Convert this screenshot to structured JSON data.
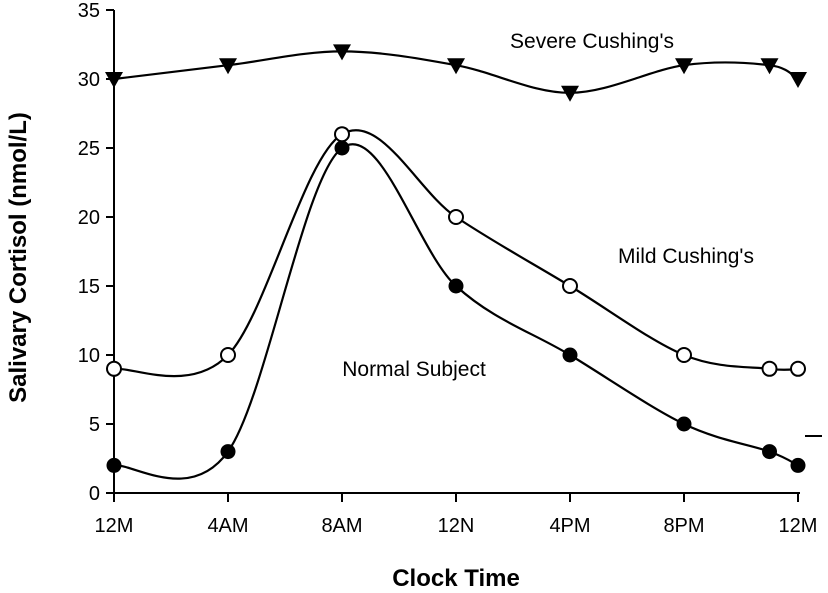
{
  "chart_data": {
    "type": "line",
    "title": "",
    "xlabel": "Clock Time",
    "ylabel": "Salivary Cortisol (nmol/L)",
    "ylim": [
      0,
      35
    ],
    "y_ticks": [
      0,
      5,
      10,
      15,
      20,
      25,
      30,
      35
    ],
    "x_tick_labels": [
      "12M",
      "4AM",
      "8AM",
      "12N",
      "4PM",
      "8PM",
      "12M"
    ],
    "x_tick_hours": [
      0,
      4,
      8,
      12,
      16,
      20,
      24
    ],
    "grid": false,
    "legend": "inline labels",
    "series": [
      {
        "name": "Severe Cushing's",
        "marker": "filled-triangle-down",
        "color": "#000000",
        "x_hours": [
          0,
          4,
          8,
          12,
          16,
          20,
          23,
          24
        ],
        "values": [
          30,
          31,
          32,
          31,
          29,
          31,
          31,
          30
        ]
      },
      {
        "name": "Mild Cushing's",
        "marker": "open-circle",
        "color": "#000000",
        "x_hours": [
          0,
          4,
          8,
          12,
          16,
          20,
          23,
          24
        ],
        "values": [
          9,
          10,
          26,
          20,
          15,
          10,
          9,
          9
        ]
      },
      {
        "name": "Normal Subject",
        "marker": "filled-circle",
        "color": "#000000",
        "x_hours": [
          0,
          4,
          8,
          12,
          16,
          20,
          23,
          24
        ],
        "values": [
          2,
          3,
          25,
          15,
          10,
          5,
          3,
          2
        ]
      }
    ]
  }
}
